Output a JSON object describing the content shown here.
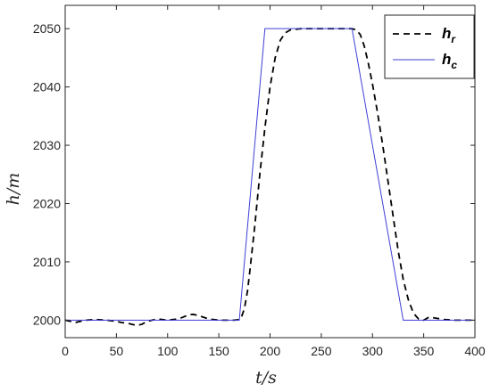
{
  "chart_data": {
    "type": "line",
    "xlabel": "t/s",
    "ylabel": "h/m",
    "xlim": [
      0,
      400
    ],
    "ylim": [
      1997,
      2054
    ],
    "xticks": [
      0,
      50,
      100,
      150,
      200,
      250,
      300,
      350,
      400
    ],
    "yticks": [
      2000,
      2010,
      2020,
      2030,
      2040,
      2050
    ],
    "grid": false,
    "legend_position": "top-right",
    "series": [
      {
        "name": "h_r",
        "legend_main": "h",
        "legend_sub": "r",
        "color": "#000000",
        "style": "dashed",
        "x": [
          0,
          5,
          10,
          15,
          20,
          30,
          40,
          50,
          55,
          60,
          65,
          70,
          75,
          80,
          90,
          100,
          110,
          115,
          120,
          125,
          130,
          140,
          150,
          160,
          165,
          170,
          172,
          175,
          178,
          180,
          185,
          190,
          195,
          200,
          205,
          210,
          215,
          220,
          225,
          230,
          240,
          250,
          260,
          270,
          280,
          284,
          288,
          292,
          296,
          300,
          305,
          310,
          315,
          320,
          325,
          330,
          335,
          340,
          345,
          350,
          355,
          360,
          370,
          380,
          390,
          400
        ],
        "y": [
          2000,
          1999.8,
          1999.6,
          1999.8,
          2000,
          2000.1,
          2000,
          1999.8,
          1999.6,
          1999.5,
          1999.3,
          1999.1,
          1999.3,
          1999.8,
          2000.2,
          2000,
          2000.2,
          2000.5,
          2000.9,
          2001.0,
          2000.8,
          2000.2,
          2000,
          2000,
          2000,
          2000.1,
          2000.5,
          2002,
          2005,
          2008,
          2016,
          2025,
          2033,
          2040,
          2045,
          2048,
          2049.3,
          2049.8,
          2049.9,
          2050,
          2050,
          2050,
          2050,
          2050,
          2050,
          2049.8,
          2049,
          2047,
          2044,
          2040.5,
          2035.5,
          2030,
          2024,
          2018,
          2012,
          2007,
          2003.5,
          2001.2,
          2000.2,
          2000,
          2000.5,
          2000.4,
          2000.1,
          2000,
          2000,
          2000
        ]
      },
      {
        "name": "h_c",
        "legend_main": "h",
        "legend_sub": "c",
        "color": "#3F3FD6",
        "style": "solid",
        "x": [
          0,
          170,
          195,
          280,
          330,
          400
        ],
        "y": [
          2000,
          2000,
          2050,
          2050,
          2000,
          2000
        ]
      }
    ]
  }
}
